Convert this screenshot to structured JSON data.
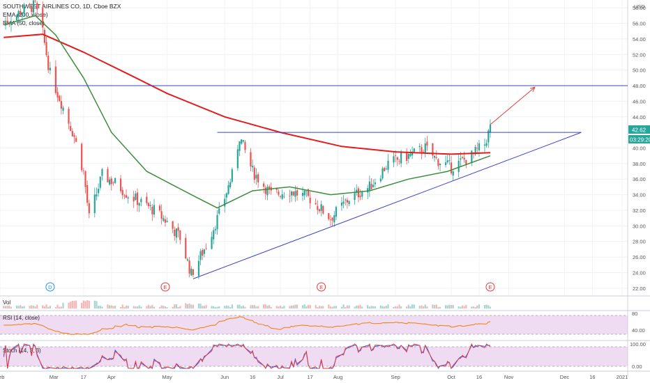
{
  "header": {
    "title": "SOUTHWEST AIRLINES CO, 1D, Cboe BZX",
    "indicator_1": "EMA (200, close)",
    "indicator_2": "EMA (50, close)",
    "currency": "USD"
  },
  "price_axis": {
    "labels": [
      "58.00",
      "56.00",
      "54.00",
      "52.00",
      "50.00",
      "48.00",
      "46.00",
      "44.00",
      "40.00",
      "38.00",
      "36.00",
      "34.00",
      "32.00",
      "30.00",
      "28.00",
      "26.00",
      "24.00",
      "22.00"
    ],
    "last_price": "42.62",
    "countdown": "03:29:20"
  },
  "time_axis": {
    "labels": [
      "Feb",
      "Mar",
      "17",
      "Apr",
      "May",
      "Jun",
      "16",
      "Jul",
      "17",
      "Aug",
      "Sep",
      "Oct",
      "16",
      "Nov",
      "Dec",
      "16",
      "2021"
    ]
  },
  "event_markers": [
    "D",
    "E",
    "E",
    "E"
  ],
  "panels": {
    "volume_label": "Vol",
    "rsi_label": "RSI (14, close)",
    "rsi_axis": [
      "80",
      "40.00"
    ],
    "stoch_label": "Stoch (14, 3, 3)",
    "stoch_axis": [
      "100.00",
      "0.00"
    ]
  },
  "colors": {
    "up": "#26a69a",
    "down": "#ef5350",
    "ema200": "#e31c1c",
    "ema50": "#3d8c3d",
    "trendline": "#3b44c4",
    "projection": "#e53935",
    "rsi": "#f57c00",
    "band": "#e1bee7",
    "stoch_k": "#2962ff",
    "stoch_d": "#e53935"
  },
  "chart_data": [
    {
      "type": "candlestick",
      "title": "SOUTHWEST AIRLINES CO, 1D, Cboe BZX",
      "x_range": [
        "2020-02-01",
        "2021-01-04"
      ],
      "ylim": [
        21,
        59
      ],
      "y_unit": "USD",
      "ohlc_sampled": [
        {
          "date": "2020-02-03",
          "close": 56.0
        },
        {
          "date": "2020-02-14",
          "close": 57.8
        },
        {
          "date": "2020-02-20",
          "close": 58.3
        },
        {
          "date": "2020-02-24",
          "close": 54.7
        },
        {
          "date": "2020-02-28",
          "close": 49.5
        },
        {
          "date": "2020-03-06",
          "close": 45.2
        },
        {
          "date": "2020-03-12",
          "close": 41.5
        },
        {
          "date": "2020-03-17",
          "close": 36.9
        },
        {
          "date": "2020-03-20",
          "close": 31.0
        },
        {
          "date": "2020-03-27",
          "close": 36.5
        },
        {
          "date": "2020-04-03",
          "close": 35.5
        },
        {
          "date": "2020-04-10",
          "close": 34.0
        },
        {
          "date": "2020-04-17",
          "close": 33.0
        },
        {
          "date": "2020-04-24",
          "close": 32.0
        },
        {
          "date": "2020-05-01",
          "close": 30.5
        },
        {
          "date": "2020-05-08",
          "close": 28.5
        },
        {
          "date": "2020-05-14",
          "close": 23.8
        },
        {
          "date": "2020-05-22",
          "close": 27.5
        },
        {
          "date": "2020-05-29",
          "close": 31.5
        },
        {
          "date": "2020-06-05",
          "close": 36.5
        },
        {
          "date": "2020-06-09",
          "close": 41.5
        },
        {
          "date": "2020-06-16",
          "close": 37.0
        },
        {
          "date": "2020-06-26",
          "close": 34.0
        },
        {
          "date": "2020-07-06",
          "close": 34.5
        },
        {
          "date": "2020-07-17",
          "close": 33.5
        },
        {
          "date": "2020-07-28",
          "close": 31.0
        },
        {
          "date": "2020-08-07",
          "close": 33.5
        },
        {
          "date": "2020-08-18",
          "close": 35.0
        },
        {
          "date": "2020-08-28",
          "close": 38.0
        },
        {
          "date": "2020-09-08",
          "close": 39.0
        },
        {
          "date": "2020-09-17",
          "close": 40.0
        },
        {
          "date": "2020-09-23",
          "close": 38.5
        },
        {
          "date": "2020-10-01",
          "close": 37.5
        },
        {
          "date": "2020-10-12",
          "close": 39.0
        },
        {
          "date": "2020-10-19",
          "close": 40.5
        },
        {
          "date": "2020-10-22",
          "close": 42.62
        }
      ],
      "series": [
        {
          "name": "EMA (200, close)",
          "values": [
            {
              "date": "2020-02-03",
              "value": 54.2
            },
            {
              "date": "2020-02-24",
              "value": 54.6
            },
            {
              "date": "2020-03-17",
              "value": 52.3
            },
            {
              "date": "2020-04-10",
              "value": 49.5
            },
            {
              "date": "2020-05-01",
              "value": 47.0
            },
            {
              "date": "2020-06-01",
              "value": 44.0
            },
            {
              "date": "2020-07-01",
              "value": 42.0
            },
            {
              "date": "2020-08-03",
              "value": 40.2
            },
            {
              "date": "2020-09-01",
              "value": 39.5
            },
            {
              "date": "2020-10-01",
              "value": 39.2
            },
            {
              "date": "2020-10-22",
              "value": 39.4
            }
          ]
        },
        {
          "name": "EMA (50, close)",
          "values": [
            {
              "date": "2020-02-03",
              "value": 55.8
            },
            {
              "date": "2020-02-20",
              "value": 57.0
            },
            {
              "date": "2020-03-02",
              "value": 54.5
            },
            {
              "date": "2020-03-17",
              "value": 49.0
            },
            {
              "date": "2020-04-01",
              "value": 42.0
            },
            {
              "date": "2020-04-20",
              "value": 37.0
            },
            {
              "date": "2020-05-14",
              "value": 34.0
            },
            {
              "date": "2020-05-28",
              "value": 32.3
            },
            {
              "date": "2020-06-16",
              "value": 34.5
            },
            {
              "date": "2020-07-06",
              "value": 35.0
            },
            {
              "date": "2020-07-28",
              "value": 34.0
            },
            {
              "date": "2020-08-18",
              "value": 34.5
            },
            {
              "date": "2020-09-08",
              "value": 36.0
            },
            {
              "date": "2020-09-29",
              "value": 37.0
            },
            {
              "date": "2020-10-22",
              "value": 39.0
            }
          ]
        }
      ],
      "horizontal_lines": [
        48.0,
        42.0
      ],
      "trendline": {
        "from": {
          "date": "2020-05-15",
          "value": 23.2
        },
        "to": {
          "date": "2020-12-10",
          "value": 42.0
        }
      },
      "projection_arrow": {
        "from": {
          "date": "2020-10-22",
          "value": 43.0
        },
        "to": {
          "date": "2020-11-15",
          "value": 47.8
        }
      }
    },
    {
      "type": "bar",
      "title": "Vol",
      "note": "relative volume, spike in March/May"
    },
    {
      "type": "line",
      "title": "RSI (14, close)",
      "ylim": [
        0,
        100
      ],
      "band": [
        30,
        70
      ]
    },
    {
      "type": "line",
      "title": "Stoch (14, 3, 3)",
      "ylim": [
        0,
        100
      ],
      "band": [
        20,
        80
      ]
    }
  ]
}
